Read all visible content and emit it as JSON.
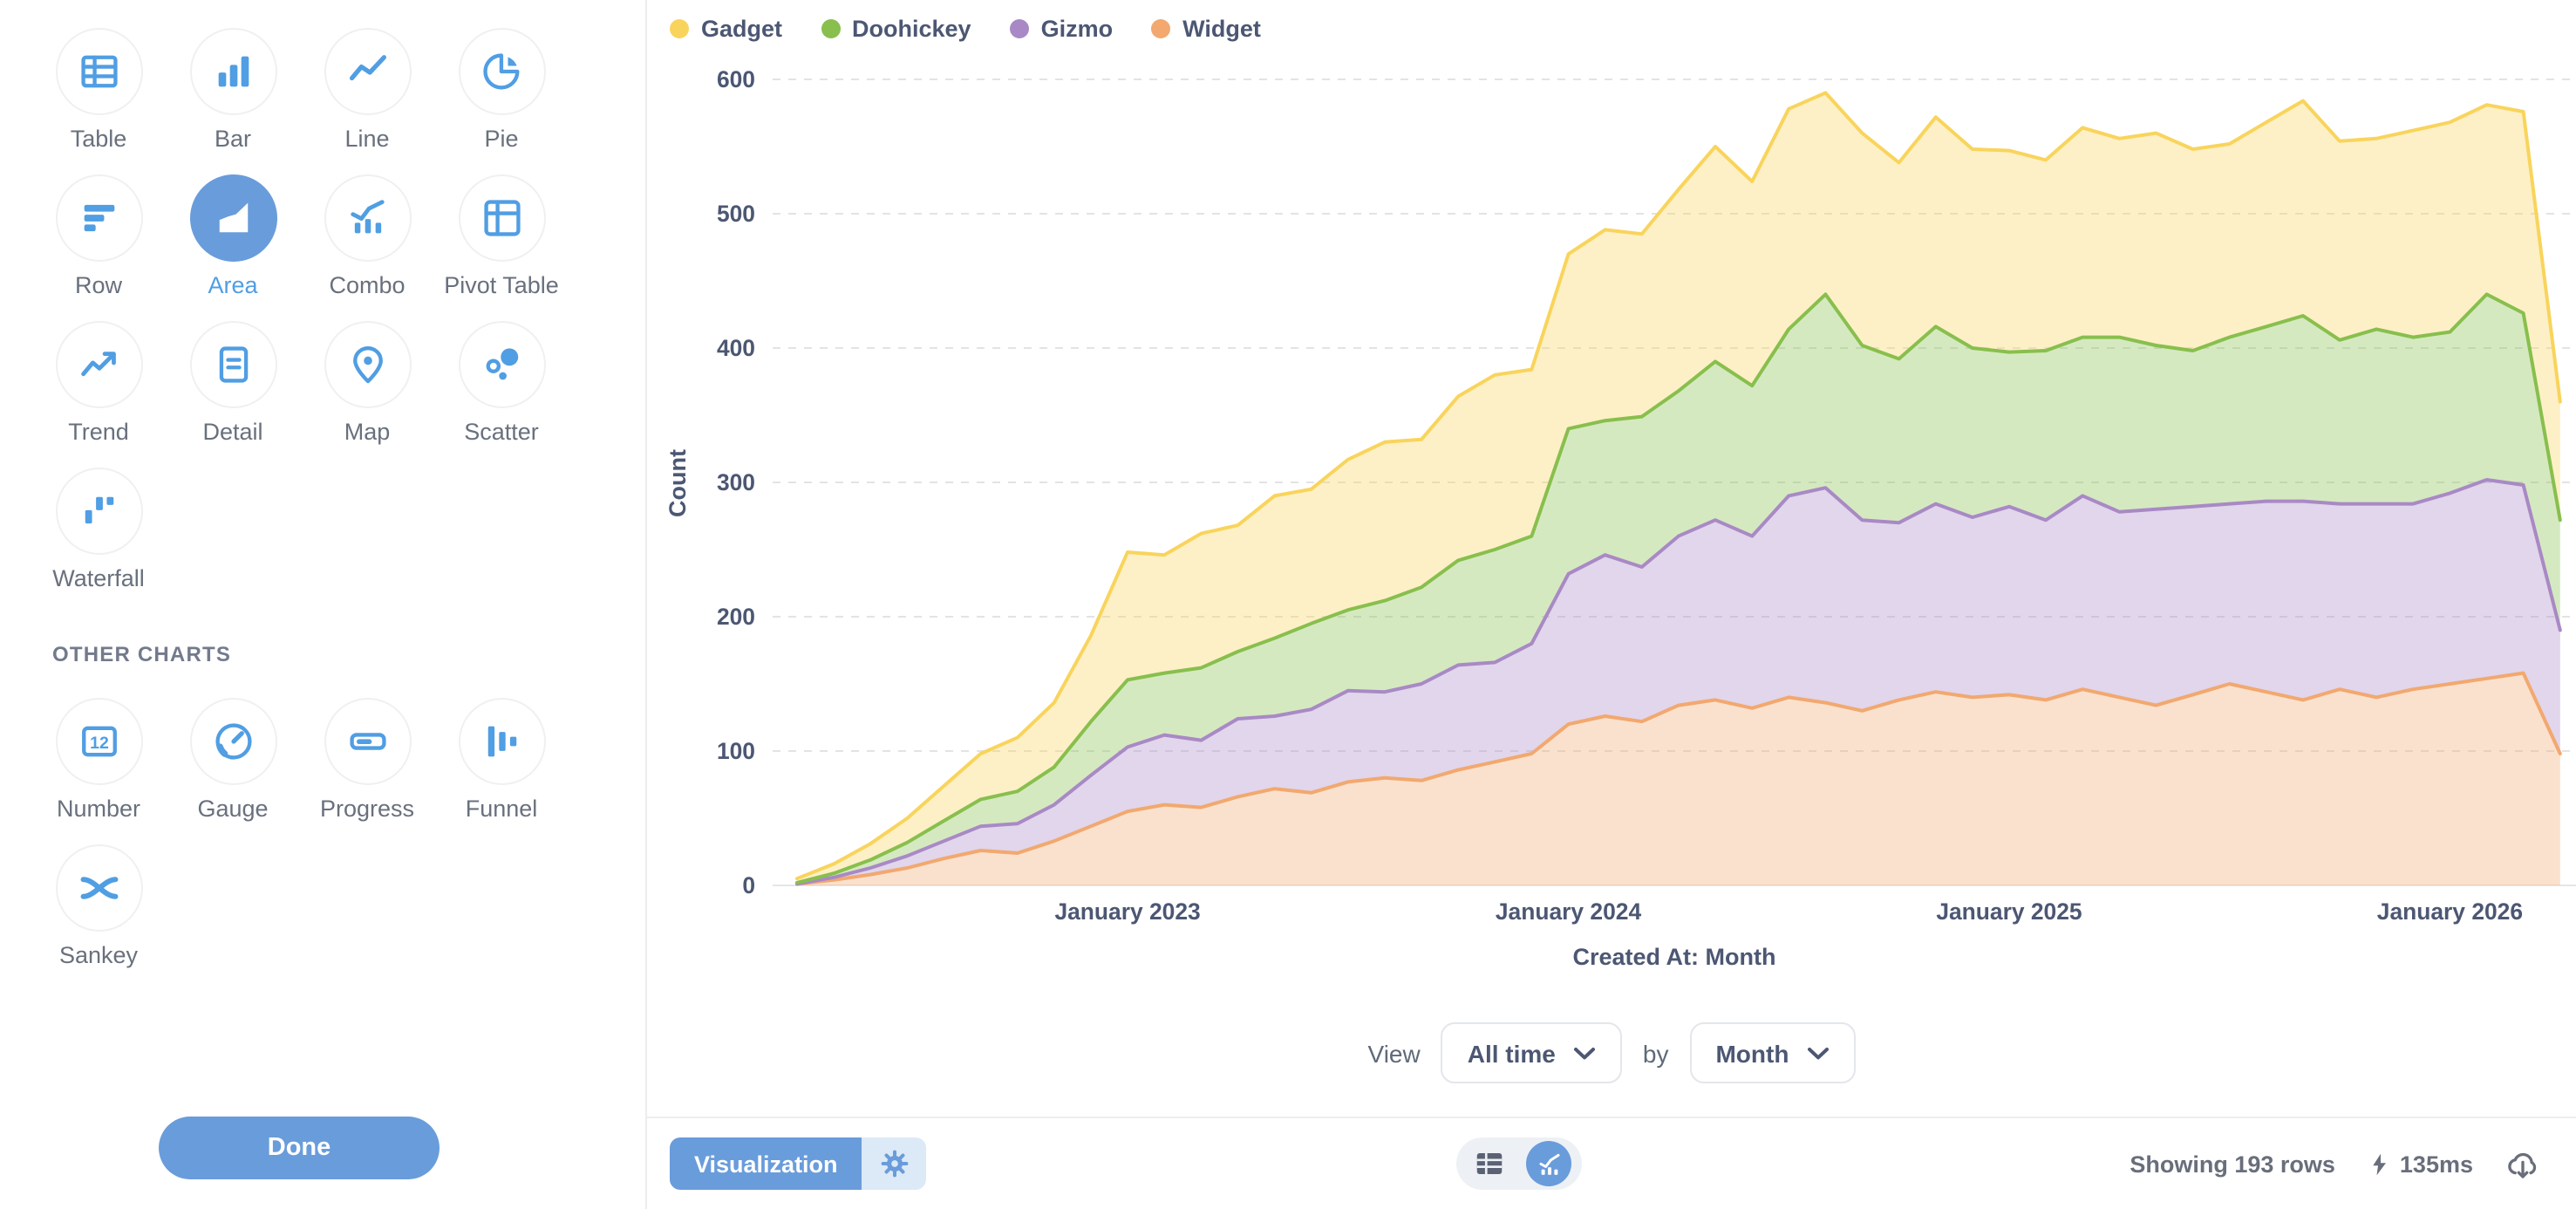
{
  "colors": {
    "brand": "#699CDB",
    "icon_blue": "#509EE3",
    "text_dark": "#4C5773",
    "text_medium": "#69707D",
    "border": "#EDEDED",
    "gridline": "#E3E3E3",
    "gear_section_bg": "#DCE9F7",
    "toggle_bg": "#EDF1F5",
    "footer_text": "#696E7B"
  },
  "sidebar": {
    "sections": [
      {
        "title": "",
        "items": [
          {
            "label": "Table",
            "icon": "table",
            "selected": false
          },
          {
            "label": "Bar",
            "icon": "bar",
            "selected": false
          },
          {
            "label": "Line",
            "icon": "line",
            "selected": false
          },
          {
            "label": "Pie",
            "icon": "pie",
            "selected": false
          },
          {
            "label": "Row",
            "icon": "row",
            "selected": false
          },
          {
            "label": "Area",
            "icon": "area",
            "selected": true
          },
          {
            "label": "Combo",
            "icon": "combo",
            "selected": false
          },
          {
            "label": "Pivot Table",
            "icon": "pivot",
            "selected": false
          },
          {
            "label": "Trend",
            "icon": "trend",
            "selected": false
          },
          {
            "label": "Detail",
            "icon": "detail",
            "selected": false
          },
          {
            "label": "Map",
            "icon": "map",
            "selected": false
          },
          {
            "label": "Scatter",
            "icon": "scatter",
            "selected": false
          },
          {
            "label": "Waterfall",
            "icon": "waterfall",
            "selected": false
          }
        ]
      },
      {
        "title": "OTHER CHARTS",
        "items": [
          {
            "label": "Number",
            "icon": "number",
            "selected": false
          },
          {
            "label": "Gauge",
            "icon": "gauge",
            "selected": false
          },
          {
            "label": "Progress",
            "icon": "progress",
            "selected": false
          },
          {
            "label": "Funnel",
            "icon": "funnel",
            "selected": false
          },
          {
            "label": "Sankey",
            "icon": "sankey",
            "selected": false
          }
        ]
      }
    ],
    "done_label": "Done"
  },
  "chart_data": {
    "type": "area",
    "stacked": true,
    "title": "",
    "xlabel": "Created At: Month",
    "ylabel": "Count",
    "ylim": [
      0,
      600
    ],
    "y_ticks": [
      0,
      100,
      200,
      300,
      400,
      500,
      600
    ],
    "grid": "dashed horizontal",
    "legend_position": "top-left",
    "x_tick_labels": [
      "January 2023",
      "January 2024",
      "January 2025",
      "January 2026"
    ],
    "x_tick_month_indexes": [
      9,
      21,
      33,
      45
    ],
    "x": [
      "2022-04",
      "2022-05",
      "2022-06",
      "2022-07",
      "2022-08",
      "2022-09",
      "2022-10",
      "2022-11",
      "2022-12",
      "2023-01",
      "2023-02",
      "2023-03",
      "2023-04",
      "2023-05",
      "2023-06",
      "2023-07",
      "2023-08",
      "2023-09",
      "2023-10",
      "2023-11",
      "2023-12",
      "2024-01",
      "2024-02",
      "2024-03",
      "2024-04",
      "2024-05",
      "2024-06",
      "2024-07",
      "2024-08",
      "2024-09",
      "2024-10",
      "2024-11",
      "2024-12",
      "2025-01",
      "2025-02",
      "2025-03",
      "2025-04",
      "2025-05",
      "2025-06",
      "2025-07",
      "2025-08",
      "2025-09",
      "2025-10",
      "2025-11",
      "2025-12",
      "2026-01",
      "2026-02",
      "2026-03",
      "2026-04"
    ],
    "stack_order_bottom_to_top": [
      "Widget",
      "Gizmo",
      "Doohickey",
      "Gadget"
    ],
    "series": [
      {
        "name": "Gadget",
        "color": "#F9D45C",
        "values": [
          3,
          7,
          12,
          18,
          26,
          34,
          40,
          48,
          64,
          95,
          88,
          100,
          94,
          106,
          100,
          112,
          118,
          110,
          122,
          130,
          124,
          130,
          142,
          136,
          150,
          160,
          152,
          164,
          150,
          158,
          146,
          156,
          148,
          150,
          142,
          156,
          148,
          158,
          150,
          144,
          152,
          160,
          148,
          142,
          154,
          156,
          141,
          150,
          88
        ]
      },
      {
        "name": "Doohickey",
        "color": "#88BF4D",
        "values": [
          1,
          3,
          6,
          10,
          15,
          20,
          24,
          28,
          40,
          50,
          46,
          54,
          50,
          58,
          64,
          60,
          68,
          72,
          78,
          84,
          80,
          108,
          100,
          112,
          108,
          118,
          112,
          124,
          144,
          130,
          122,
          132,
          126,
          115,
          126,
          118,
          130,
          122,
          116,
          124,
          130,
          138,
          122,
          130,
          124,
          120,
          138,
          128,
          82
        ]
      },
      {
        "name": "Gizmo",
        "color": "#A989C5",
        "values": [
          0,
          2,
          5,
          9,
          13,
          18,
          22,
          27,
          38,
          48,
          52,
          50,
          58,
          54,
          62,
          68,
          64,
          72,
          78,
          74,
          82,
          112,
          120,
          115,
          126,
          134,
          128,
          150,
          160,
          142,
          132,
          140,
          134,
          140,
          134,
          144,
          138,
          146,
          140,
          134,
          142,
          148,
          138,
          144,
          138,
          142,
          148,
          140,
          92
        ]
      },
      {
        "name": "Widget",
        "color": "#F2A86F",
        "values": [
          1,
          4,
          8,
          13,
          20,
          26,
          24,
          33,
          44,
          55,
          60,
          58,
          66,
          72,
          69,
          77,
          80,
          78,
          86,
          92,
          98,
          120,
          126,
          122,
          134,
          138,
          132,
          140,
          136,
          130,
          138,
          144,
          140,
          142,
          138,
          146,
          140,
          134,
          142,
          150,
          144,
          138,
          146,
          140,
          146,
          150,
          154,
          158,
          98
        ]
      }
    ]
  },
  "controls": {
    "view_label": "View",
    "view_value": "All time",
    "by_label": "by",
    "by_value": "Month"
  },
  "footer": {
    "visualization_label": "Visualization",
    "rows_text": "Showing 193 rows",
    "timing_text": "135ms"
  }
}
